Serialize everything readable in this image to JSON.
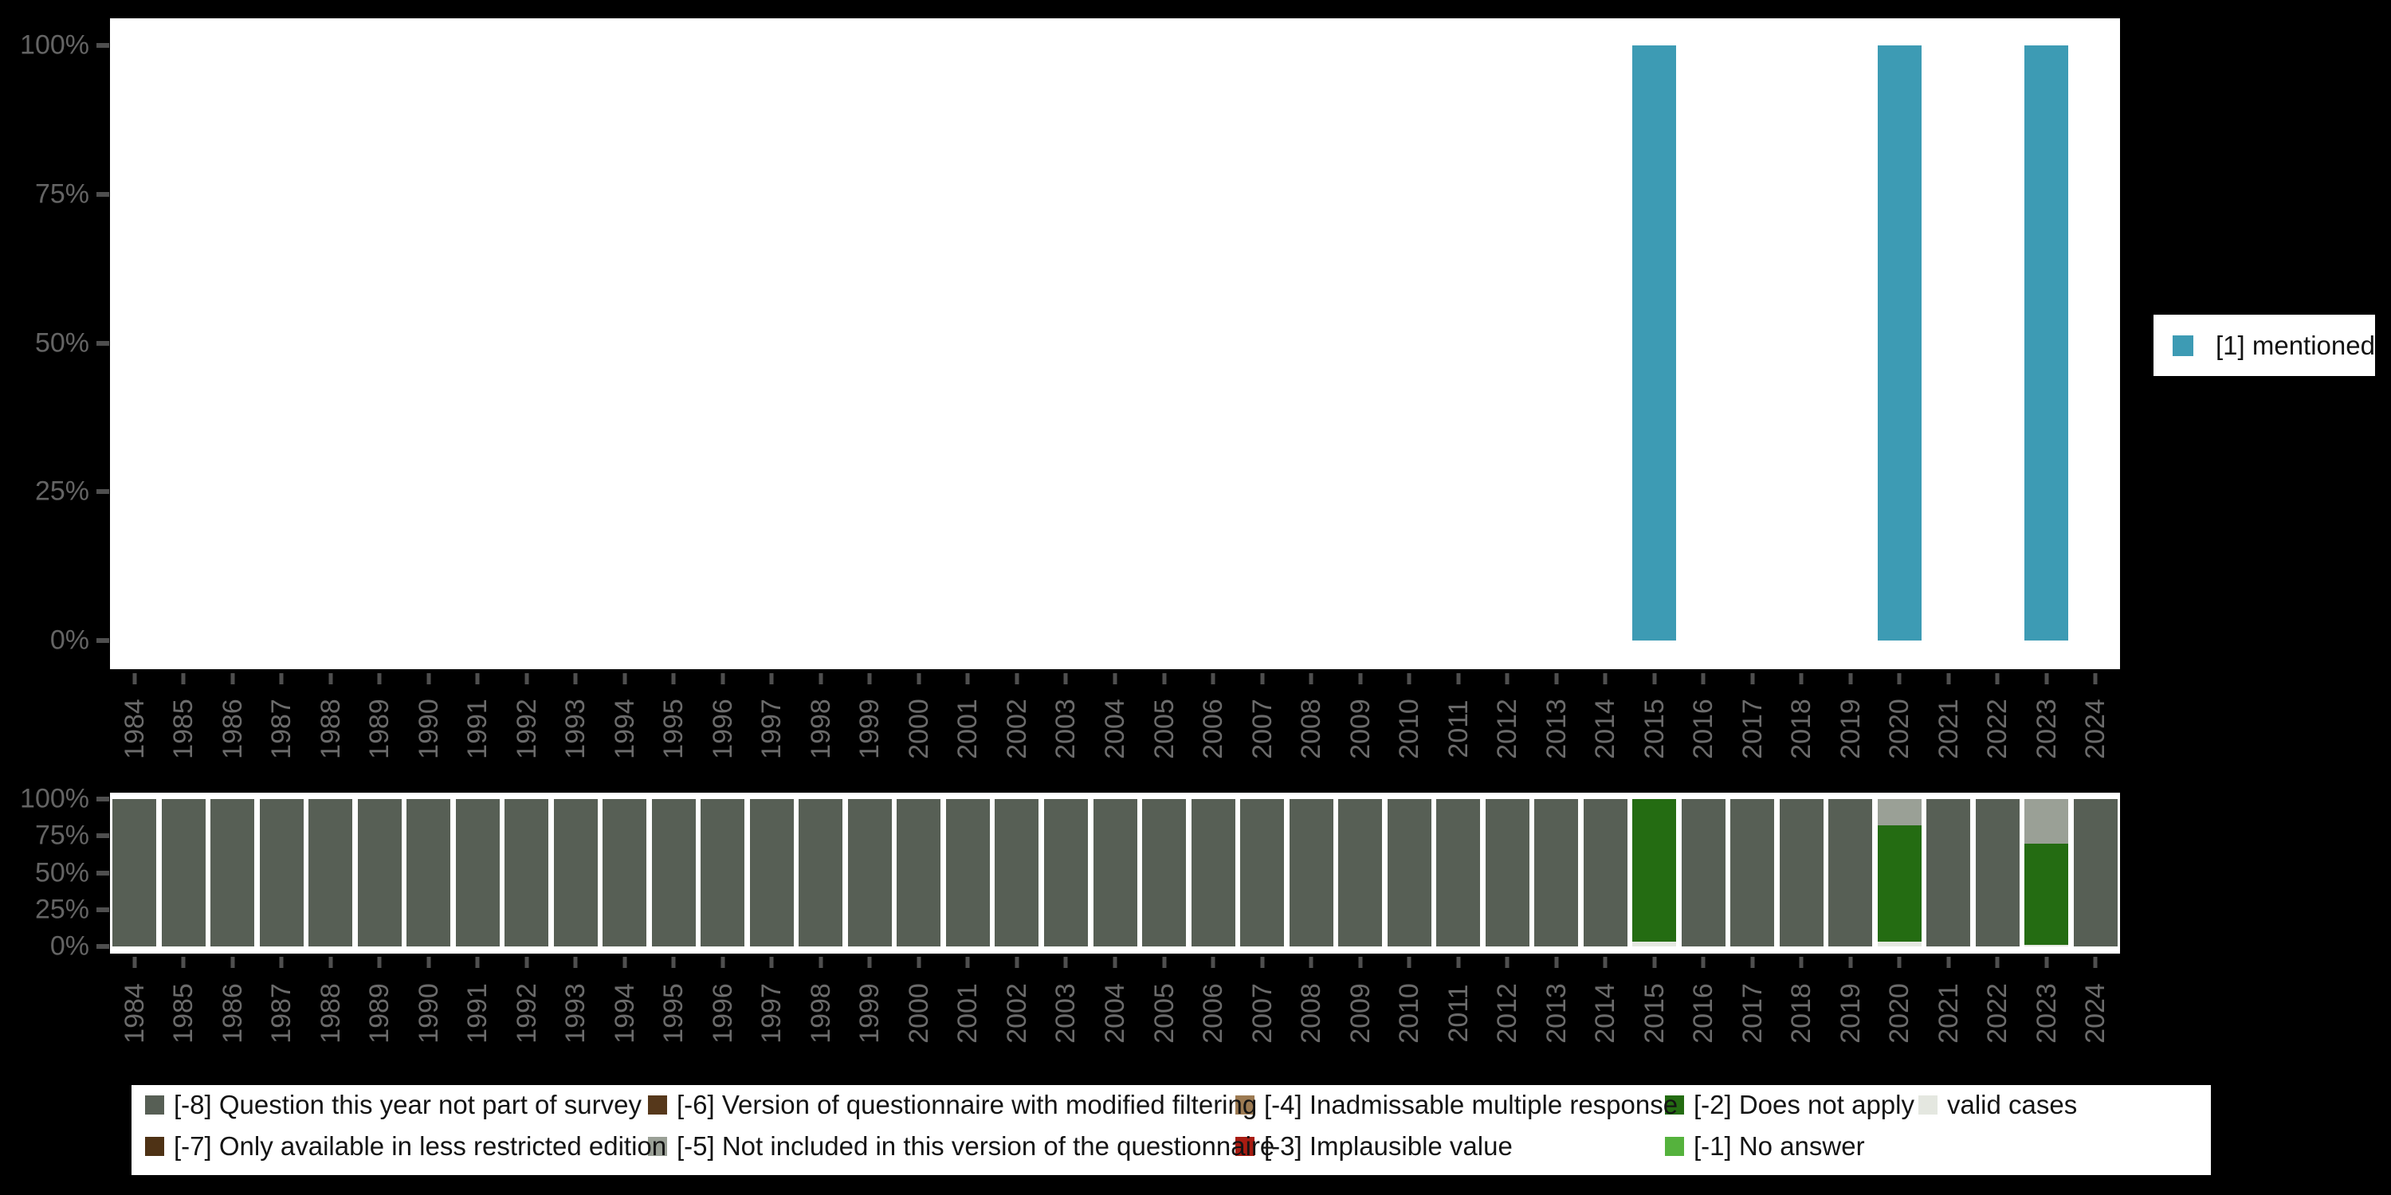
{
  "figure": {
    "background": "#000000",
    "panel_background": "#ffffff"
  },
  "colors": {
    "mentioned": "#3d9bb4",
    "-8": "#575f55",
    "-7": "#4e3215",
    "-6": "#56381b",
    "-5": "#9aa096",
    "-4": "#9c7a52",
    "-3": "#a81c12",
    "-2": "#246c12",
    "-1": "#55b23d",
    "valid": "#e4e7e0"
  },
  "legend_right": {
    "items": [
      {
        "key": "mentioned",
        "label": "[1] mentioned"
      }
    ]
  },
  "legend_bottom": {
    "items": [
      {
        "key": "-8",
        "label": "[-8] Question this year not part of survey",
        "row": 0,
        "col": 0
      },
      {
        "key": "-7",
        "label": "[-7] Only available in less restricted edition",
        "row": 1,
        "col": 0
      },
      {
        "key": "-6",
        "label": "[-6] Version of questionnaire with modified filtering",
        "row": 0,
        "col": 1
      },
      {
        "key": "-5",
        "label": "[-5] Not included in this version of the questionnaire",
        "row": 1,
        "col": 1
      },
      {
        "key": "-4",
        "label": "[-4] Inadmissable multiple response",
        "row": 0,
        "col": 2
      },
      {
        "key": "-3",
        "label": "[-3] Implausible value",
        "row": 1,
        "col": 2
      },
      {
        "key": "-2",
        "label": "[-2] Does not apply",
        "row": 0,
        "col": 3
      },
      {
        "key": "-1",
        "label": "[-1] No answer",
        "row": 1,
        "col": 3
      },
      {
        "key": "valid",
        "label": "valid cases",
        "row": 0,
        "col": 4
      }
    ]
  },
  "chart_data": [
    {
      "type": "bar",
      "title": "",
      "xlabel": "",
      "ylabel": "",
      "ylim": [
        0,
        100
      ],
      "yticks": [
        "0%",
        "25%",
        "50%",
        "75%",
        "100%"
      ],
      "grid": false,
      "legend_position": "right",
      "categories": [
        "1984",
        "1985",
        "1986",
        "1987",
        "1988",
        "1989",
        "1990",
        "1991",
        "1992",
        "1993",
        "1994",
        "1995",
        "1996",
        "1997",
        "1998",
        "1999",
        "2000",
        "2001",
        "2002",
        "2003",
        "2004",
        "2005",
        "2006",
        "2007",
        "2008",
        "2009",
        "2010",
        "2011",
        "2012",
        "2013",
        "2014",
        "2015",
        "2016",
        "2017",
        "2018",
        "2019",
        "2020",
        "2021",
        "2022",
        "2023",
        "2024"
      ],
      "series": [
        {
          "key": "mentioned",
          "name": "[1] mentioned",
          "values": [
            null,
            null,
            null,
            null,
            null,
            null,
            null,
            null,
            null,
            null,
            null,
            null,
            null,
            null,
            null,
            null,
            null,
            null,
            null,
            null,
            null,
            null,
            null,
            null,
            null,
            null,
            null,
            null,
            null,
            null,
            null,
            100,
            null,
            null,
            null,
            null,
            100,
            null,
            null,
            100,
            null
          ]
        }
      ]
    },
    {
      "type": "stacked-bar",
      "title": "",
      "xlabel": "",
      "ylabel": "",
      "ylim": [
        0,
        100
      ],
      "yticks": [
        "0%",
        "25%",
        "50%",
        "75%",
        "100%"
      ],
      "grid": false,
      "legend_position": "bottom",
      "stack_order_bottom_to_top": [
        "valid",
        "-1",
        "-2",
        "-3",
        "-4",
        "-5",
        "-6",
        "-7",
        "-8"
      ],
      "categories": [
        "1984",
        "1985",
        "1986",
        "1987",
        "1988",
        "1989",
        "1990",
        "1991",
        "1992",
        "1993",
        "1994",
        "1995",
        "1996",
        "1997",
        "1998",
        "1999",
        "2000",
        "2001",
        "2002",
        "2003",
        "2004",
        "2005",
        "2006",
        "2007",
        "2008",
        "2009",
        "2010",
        "2011",
        "2012",
        "2013",
        "2014",
        "2015",
        "2016",
        "2017",
        "2018",
        "2019",
        "2020",
        "2021",
        "2022",
        "2023",
        "2024"
      ],
      "series": [
        {
          "key": "valid",
          "name": "valid cases",
          "values": [
            0,
            0,
            0,
            0,
            0,
            0,
            0,
            0,
            0,
            0,
            0,
            0,
            0,
            0,
            0,
            0,
            0,
            0,
            0,
            0,
            0,
            0,
            0,
            0,
            0,
            0,
            0,
            0,
            0,
            0,
            0,
            3,
            0,
            0,
            0,
            0,
            3,
            0,
            0,
            1,
            0
          ]
        },
        {
          "key": "-1",
          "name": "[-1] No answer",
          "values": [
            0,
            0,
            0,
            0,
            0,
            0,
            0,
            0,
            0,
            0,
            0,
            0,
            0,
            0,
            0,
            0,
            0,
            0,
            0,
            0,
            0,
            0,
            0,
            0,
            0,
            0,
            0,
            0,
            0,
            0,
            0,
            0,
            0,
            0,
            0,
            0,
            0,
            0,
            0,
            0,
            0
          ]
        },
        {
          "key": "-2",
          "name": "[-2] Does not apply",
          "values": [
            0,
            0,
            0,
            0,
            0,
            0,
            0,
            0,
            0,
            0,
            0,
            0,
            0,
            0,
            0,
            0,
            0,
            0,
            0,
            0,
            0,
            0,
            0,
            0,
            0,
            0,
            0,
            0,
            0,
            0,
            0,
            97,
            0,
            0,
            0,
            0,
            79,
            0,
            0,
            69,
            0
          ]
        },
        {
          "key": "-3",
          "name": "[-3] Implausible value",
          "values": [
            0,
            0,
            0,
            0,
            0,
            0,
            0,
            0,
            0,
            0,
            0,
            0,
            0,
            0,
            0,
            0,
            0,
            0,
            0,
            0,
            0,
            0,
            0,
            0,
            0,
            0,
            0,
            0,
            0,
            0,
            0,
            0,
            0,
            0,
            0,
            0,
            0,
            0,
            0,
            0,
            0
          ]
        },
        {
          "key": "-4",
          "name": "[-4] Inadmissable multiple response",
          "values": [
            0,
            0,
            0,
            0,
            0,
            0,
            0,
            0,
            0,
            0,
            0,
            0,
            0,
            0,
            0,
            0,
            0,
            0,
            0,
            0,
            0,
            0,
            0,
            0,
            0,
            0,
            0,
            0,
            0,
            0,
            0,
            0,
            0,
            0,
            0,
            0,
            0,
            0,
            0,
            0,
            0
          ]
        },
        {
          "key": "-5",
          "name": "[-5] Not included in this version of the questionnaire",
          "values": [
            0,
            0,
            0,
            0,
            0,
            0,
            0,
            0,
            0,
            0,
            0,
            0,
            0,
            0,
            0,
            0,
            0,
            0,
            0,
            0,
            0,
            0,
            0,
            0,
            0,
            0,
            0,
            0,
            0,
            0,
            0,
            0,
            0,
            0,
            0,
            0,
            18,
            0,
            0,
            30,
            0
          ]
        },
        {
          "key": "-6",
          "name": "[-6] Version of questionnaire with modified filtering",
          "values": [
            0,
            0,
            0,
            0,
            0,
            0,
            0,
            0,
            0,
            0,
            0,
            0,
            0,
            0,
            0,
            0,
            0,
            0,
            0,
            0,
            0,
            0,
            0,
            0,
            0,
            0,
            0,
            0,
            0,
            0,
            0,
            0,
            0,
            0,
            0,
            0,
            0,
            0,
            0,
            0,
            0
          ]
        },
        {
          "key": "-7",
          "name": "[-7] Only available in less restricted edition",
          "values": [
            0,
            0,
            0,
            0,
            0,
            0,
            0,
            0,
            0,
            0,
            0,
            0,
            0,
            0,
            0,
            0,
            0,
            0,
            0,
            0,
            0,
            0,
            0,
            0,
            0,
            0,
            0,
            0,
            0,
            0,
            0,
            0,
            0,
            0,
            0,
            0,
            0,
            0,
            0,
            0,
            0
          ]
        },
        {
          "key": "-8",
          "name": "[-8] Question this year not part of survey",
          "values": [
            100,
            100,
            100,
            100,
            100,
            100,
            100,
            100,
            100,
            100,
            100,
            100,
            100,
            100,
            100,
            100,
            100,
            100,
            100,
            100,
            100,
            100,
            100,
            100,
            100,
            100,
            100,
            100,
            100,
            100,
            100,
            0,
            100,
            100,
            100,
            100,
            0,
            100,
            100,
            0,
            100
          ]
        }
      ]
    }
  ]
}
